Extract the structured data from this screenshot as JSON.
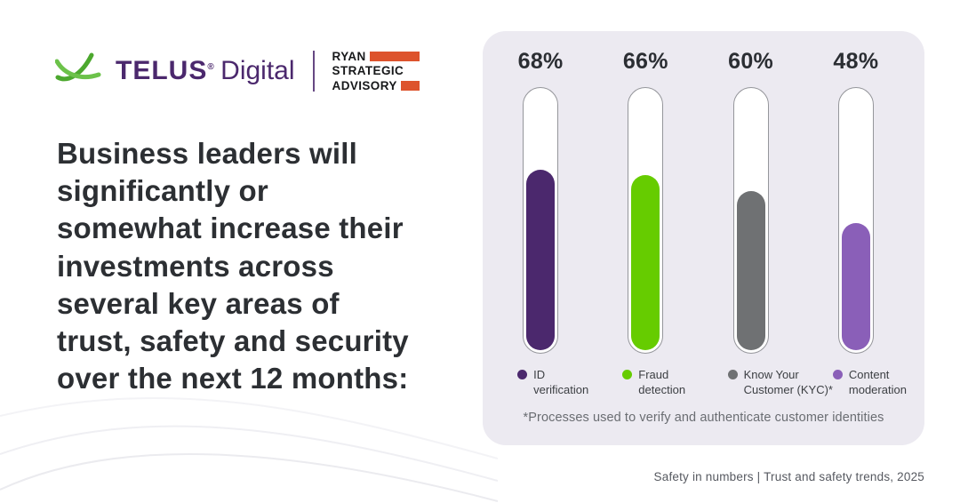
{
  "brand": {
    "telus_wordmark": "TELUS",
    "telus_trademark": "®",
    "telus_suffix": "Digital",
    "ryan_line1": "RYAN",
    "ryan_line2": "STRATEGIC",
    "ryan_line3": "ADVISORY",
    "telus_purple": "#4B286D",
    "telus_green": "#66CC00",
    "ryan_orange": "#DD532C"
  },
  "headline": "Business leaders will\nsignificantly or\nsomewhat increase their\ninvestments across\nseveral key areas of\ntrust, safety and security\nover the next 12 months:",
  "chart_data": {
    "type": "bar",
    "title": "Business leaders will significantly or somewhat increase their investments across several key areas of trust, safety and security over the next 12 months",
    "categories": [
      "ID verification",
      "Fraud detection",
      "Know Your Customer (KYC)*",
      "Content moderation"
    ],
    "values": [
      68,
      66,
      60,
      48
    ],
    "value_labels": [
      "68%",
      "66%",
      "60%",
      "48%"
    ],
    "unit": "%",
    "ylim": [
      0,
      100
    ],
    "colors": [
      "#4B286D",
      "#66CC00",
      "#6F7173",
      "#8A5FB8"
    ],
    "legend_position": "bottom",
    "legend": [
      {
        "line1": "ID",
        "line2": "verification"
      },
      {
        "line1": "Fraud",
        "line2": "detection"
      },
      {
        "line1": "Know Your",
        "line2": "Customer (KYC)*"
      },
      {
        "line1": "Content",
        "line2": "moderation"
      }
    ],
    "footnote": "*Processes used to verify and authenticate customer identities"
  },
  "footer": {
    "source": "Safety in numbers | Trust and safety trends, 2025"
  }
}
